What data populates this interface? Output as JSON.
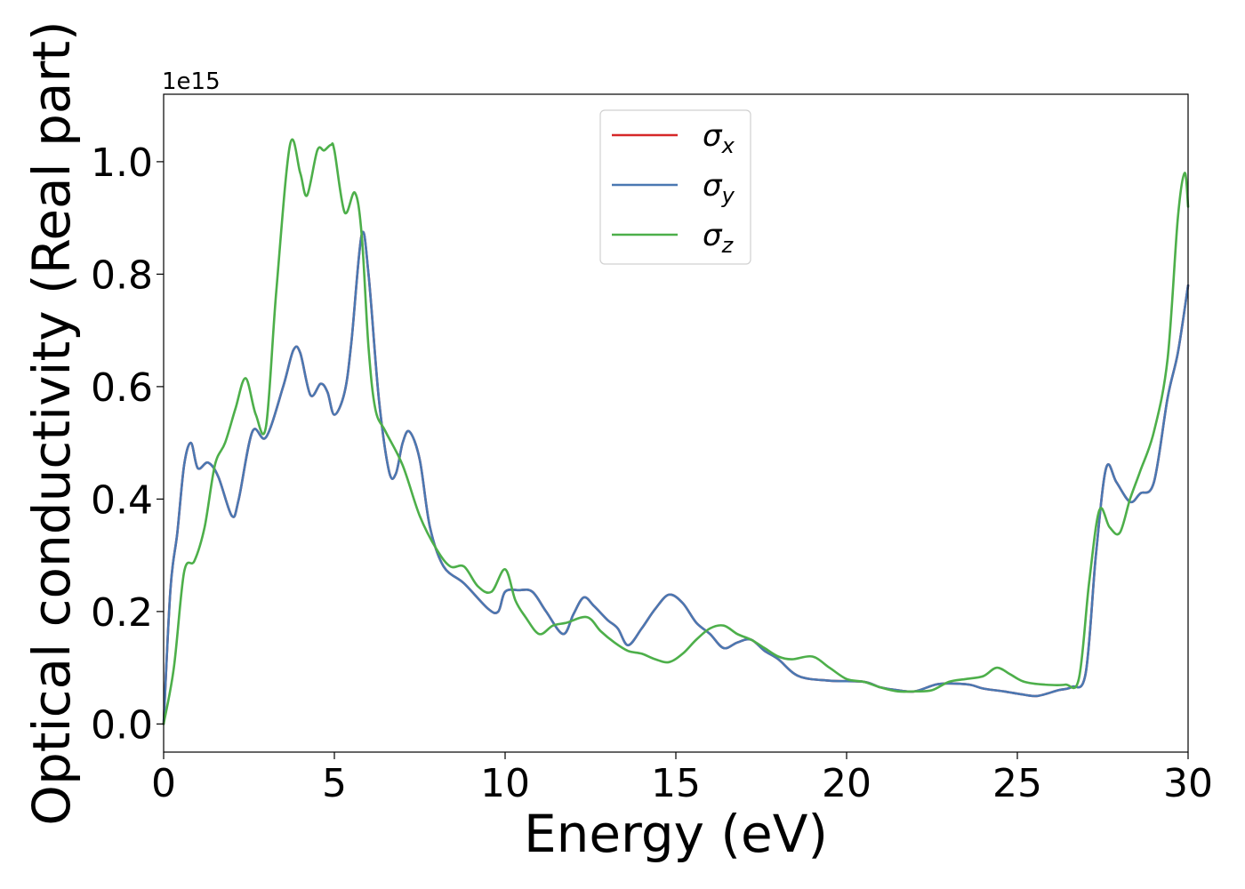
{
  "chart_data": {
    "type": "line",
    "xlabel": "Energy (eV)",
    "ylabel": "Optical conductivity (Real part)",
    "y_offset_label": "1e15",
    "xlim": [
      0,
      30
    ],
    "ylim": [
      -0.05,
      1.12
    ],
    "x_ticks": [
      0,
      5,
      10,
      15,
      20,
      25,
      30
    ],
    "x_tick_labels": [
      "0",
      "5",
      "10",
      "15",
      "20",
      "25",
      "30"
    ],
    "y_ticks": [
      0.0,
      0.2,
      0.4,
      0.6,
      0.8,
      1.0
    ],
    "y_tick_labels": [
      "0.0",
      "0.2",
      "0.4",
      "0.6",
      "0.8",
      "1.0"
    ],
    "grid": false,
    "legend_position": "top-center",
    "series": [
      {
        "name": "σx",
        "legend_symbol": "σ",
        "legend_sub": "x",
        "color": "#d62728",
        "x": [
          0,
          0.2,
          0.4,
          0.6,
          0.8,
          1.0,
          1.3,
          1.6,
          2.0,
          2.2,
          2.6,
          3.0,
          3.5,
          3.8,
          4.0,
          4.3,
          4.6,
          4.8,
          5.0,
          5.3,
          5.5,
          5.8,
          6.0,
          6.3,
          6.6,
          6.8,
          7.0,
          7.2,
          7.5,
          7.8,
          8.2,
          8.8,
          9.5,
          9.8,
          10.0,
          10.4,
          10.8,
          11.2,
          11.7,
          12.0,
          12.3,
          12.6,
          13.0,
          13.3,
          13.6,
          14.0,
          14.4,
          14.8,
          15.2,
          15.6,
          16.0,
          16.4,
          16.8,
          17.2,
          17.6,
          18.0,
          18.6,
          19.5,
          20.5,
          21.0,
          21.5,
          22.0,
          22.6,
          23.0,
          23.6,
          24.0,
          24.6,
          25.2,
          25.6,
          26.2,
          26.6,
          27.0,
          27.3,
          27.6,
          27.9,
          28.3,
          28.6,
          29.0,
          29.4,
          29.7,
          30.0
        ],
        "y": [
          0.0,
          0.24,
          0.34,
          0.46,
          0.5,
          0.455,
          0.465,
          0.44,
          0.37,
          0.4,
          0.52,
          0.51,
          0.6,
          0.665,
          0.66,
          0.585,
          0.605,
          0.59,
          0.55,
          0.59,
          0.68,
          0.87,
          0.8,
          0.58,
          0.45,
          0.445,
          0.5,
          0.52,
          0.47,
          0.35,
          0.28,
          0.25,
          0.205,
          0.2,
          0.235,
          0.238,
          0.235,
          0.2,
          0.16,
          0.195,
          0.225,
          0.21,
          0.185,
          0.17,
          0.14,
          0.17,
          0.205,
          0.23,
          0.215,
          0.18,
          0.16,
          0.135,
          0.145,
          0.15,
          0.13,
          0.115,
          0.085,
          0.077,
          0.075,
          0.065,
          0.06,
          0.058,
          0.07,
          0.072,
          0.07,
          0.063,
          0.058,
          0.052,
          0.05,
          0.06,
          0.066,
          0.09,
          0.3,
          0.455,
          0.43,
          0.395,
          0.41,
          0.43,
          0.58,
          0.66,
          0.78
        ]
      },
      {
        "name": "σy",
        "legend_symbol": "σ",
        "legend_sub": "y",
        "color": "#4a78b2",
        "x": [
          0,
          0.2,
          0.4,
          0.6,
          0.8,
          1.0,
          1.3,
          1.6,
          2.0,
          2.2,
          2.6,
          3.0,
          3.5,
          3.8,
          4.0,
          4.3,
          4.6,
          4.8,
          5.0,
          5.3,
          5.5,
          5.8,
          6.0,
          6.3,
          6.6,
          6.8,
          7.0,
          7.2,
          7.5,
          7.8,
          8.2,
          8.8,
          9.5,
          9.8,
          10.0,
          10.4,
          10.8,
          11.2,
          11.7,
          12.0,
          12.3,
          12.6,
          13.0,
          13.3,
          13.6,
          14.0,
          14.4,
          14.8,
          15.2,
          15.6,
          16.0,
          16.4,
          16.8,
          17.2,
          17.6,
          18.0,
          18.6,
          19.5,
          20.5,
          21.0,
          21.5,
          22.0,
          22.6,
          23.0,
          23.6,
          24.0,
          24.6,
          25.2,
          25.6,
          26.2,
          26.6,
          27.0,
          27.3,
          27.6,
          27.9,
          28.3,
          28.6,
          29.0,
          29.4,
          29.7,
          30.0
        ],
        "y": [
          0.0,
          0.24,
          0.34,
          0.46,
          0.5,
          0.455,
          0.465,
          0.44,
          0.37,
          0.4,
          0.52,
          0.51,
          0.6,
          0.665,
          0.66,
          0.585,
          0.605,
          0.59,
          0.55,
          0.59,
          0.68,
          0.87,
          0.8,
          0.58,
          0.45,
          0.445,
          0.5,
          0.52,
          0.47,
          0.35,
          0.28,
          0.25,
          0.205,
          0.2,
          0.235,
          0.238,
          0.235,
          0.2,
          0.16,
          0.195,
          0.225,
          0.21,
          0.185,
          0.17,
          0.14,
          0.17,
          0.205,
          0.23,
          0.215,
          0.18,
          0.16,
          0.135,
          0.145,
          0.15,
          0.13,
          0.115,
          0.085,
          0.077,
          0.075,
          0.065,
          0.06,
          0.058,
          0.07,
          0.072,
          0.07,
          0.063,
          0.058,
          0.052,
          0.05,
          0.06,
          0.066,
          0.09,
          0.3,
          0.455,
          0.43,
          0.395,
          0.41,
          0.43,
          0.58,
          0.66,
          0.78
        ]
      },
      {
        "name": "σz",
        "legend_symbol": "σ",
        "legend_sub": "z",
        "color": "#4daf4a",
        "x": [
          0,
          0.3,
          0.6,
          0.9,
          1.2,
          1.5,
          1.8,
          2.1,
          2.4,
          2.7,
          3.0,
          3.3,
          3.7,
          4.0,
          4.2,
          4.5,
          4.7,
          4.9,
          5.0,
          5.3,
          5.6,
          5.8,
          6.0,
          6.2,
          6.5,
          7.0,
          7.5,
          8.0,
          8.4,
          8.8,
          9.2,
          9.6,
          10.0,
          10.3,
          10.6,
          11.0,
          11.4,
          11.8,
          12.4,
          12.8,
          13.2,
          13.6,
          14.0,
          14.4,
          14.8,
          15.2,
          15.6,
          16.0,
          16.4,
          16.8,
          17.2,
          17.6,
          18.0,
          18.4,
          19.0,
          19.5,
          20.0,
          20.5,
          21.0,
          21.5,
          22.0,
          22.5,
          23.0,
          23.5,
          24.0,
          24.4,
          24.8,
          25.2,
          25.8,
          26.4,
          26.8,
          27.1,
          27.4,
          27.7,
          28.0,
          28.3,
          28.6,
          29.0,
          29.4,
          29.7,
          29.9,
          30.0
        ],
        "y": [
          0.0,
          0.1,
          0.27,
          0.29,
          0.35,
          0.46,
          0.5,
          0.56,
          0.615,
          0.55,
          0.53,
          0.77,
          1.03,
          0.98,
          0.94,
          1.02,
          1.02,
          1.03,
          1.02,
          0.91,
          0.945,
          0.87,
          0.67,
          0.56,
          0.52,
          0.46,
          0.37,
          0.31,
          0.28,
          0.28,
          0.245,
          0.235,
          0.275,
          0.22,
          0.19,
          0.16,
          0.175,
          0.18,
          0.19,
          0.165,
          0.145,
          0.13,
          0.125,
          0.115,
          0.11,
          0.125,
          0.15,
          0.17,
          0.175,
          0.16,
          0.15,
          0.135,
          0.12,
          0.115,
          0.12,
          0.1,
          0.08,
          0.075,
          0.065,
          0.058,
          0.058,
          0.06,
          0.075,
          0.08,
          0.085,
          0.1,
          0.088,
          0.075,
          0.07,
          0.07,
          0.08,
          0.25,
          0.38,
          0.35,
          0.34,
          0.4,
          0.45,
          0.52,
          0.65,
          0.9,
          0.98,
          0.92
        ]
      }
    ]
  }
}
